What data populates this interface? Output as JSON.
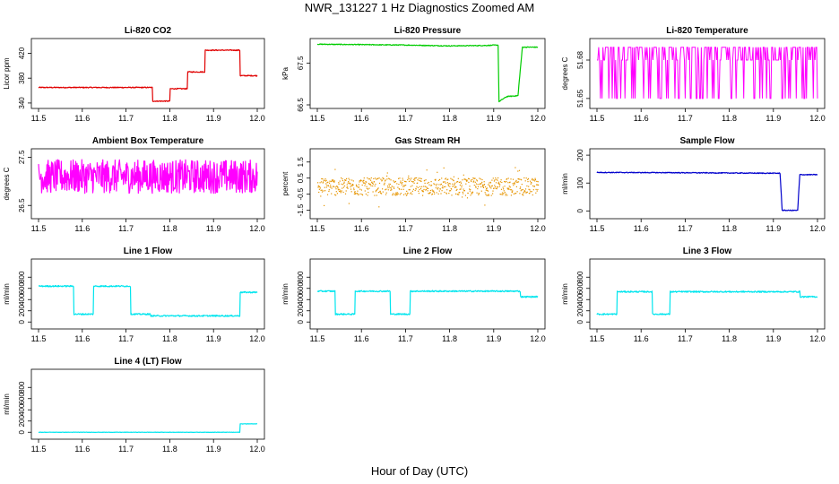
{
  "page": {
    "title": "NWR_131227  1 Hz Diagnostics Zoomed AM",
    "xlabel": "Hour of Day (UTC)"
  },
  "chart_data": [
    {
      "id": "li820-co2",
      "type": "line",
      "title": "Li-820 CO2",
      "ylabel": "Licor ppm",
      "color": "#e00000",
      "xlim": [
        11.5,
        12.0
      ],
      "ylim": [
        337,
        438
      ],
      "xticks": [
        "11.5",
        "11.6",
        "11.7",
        "11.8",
        "11.9",
        "12.0"
      ],
      "yticks": [
        "340",
        "380",
        "420"
      ],
      "series": [
        {
          "x": [
            11.5,
            11.76,
            11.76,
            11.8,
            11.8,
            11.84,
            11.84,
            11.88,
            11.88,
            11.96,
            11.96,
            12.0
          ],
          "y": [
            365,
            365,
            343,
            343,
            363,
            363,
            390,
            390,
            425,
            425,
            384,
            384
          ],
          "noise": 0.8
        }
      ]
    },
    {
      "id": "li820-pressure",
      "type": "line",
      "title": "Li-820 Pressure",
      "ylabel": "kPa",
      "color": "#00cc00",
      "xlim": [
        11.5,
        12.0
      ],
      "ylim": [
        66.5,
        68.0
      ],
      "xticks": [
        "11.5",
        "11.6",
        "11.7",
        "11.8",
        "11.9",
        "12.0"
      ],
      "yticks": [
        "66.5",
        "67.5"
      ],
      "series": [
        {
          "x": [
            11.5,
            11.7,
            11.8,
            11.88,
            11.91,
            11.912,
            11.93,
            11.955,
            11.965,
            12.0
          ],
          "y": [
            67.95,
            67.93,
            67.91,
            67.92,
            67.93,
            66.58,
            66.7,
            66.72,
            67.88,
            67.88
          ],
          "noise": 0.01
        }
      ]
    },
    {
      "id": "li820-temperature",
      "type": "line",
      "title": "Li-820 Temperature",
      "ylabel": "degrees C",
      "color": "#ff00ff",
      "xlim": [
        11.5,
        12.0
      ],
      "ylim": [
        51.645,
        51.694
      ],
      "xticks": [
        "11.5",
        "11.6",
        "11.7",
        "11.8",
        "11.9",
        "12.0"
      ],
      "yticks": [
        "51.65",
        "51.68"
      ],
      "series": [
        {
          "x": [
            11.5,
            12.0
          ],
          "y": [
            51.67,
            51.67
          ],
          "levels": [
            51.65,
            51.68,
            51.69
          ]
        }
      ]
    },
    {
      "id": "ambient-box-temperature",
      "type": "line",
      "title": "Ambient Box Temperature",
      "ylabel": "degrees C",
      "color": "#ff00ff",
      "xlim": [
        11.5,
        12.0
      ],
      "ylim": [
        26.3,
        27.6
      ],
      "xticks": [
        "11.5",
        "11.6",
        "11.7",
        "11.8",
        "11.9",
        "12.0"
      ],
      "yticks": [
        "26.5",
        "27.5"
      ],
      "series": [
        {
          "x": [
            11.5,
            12.0
          ],
          "y": [
            27.1,
            27.1
          ],
          "noise": 0.35
        }
      ]
    },
    {
      "id": "gas-stream-rh",
      "type": "scatter",
      "title": "Gas Stream RH",
      "ylabel": "percent",
      "color": "#e69500",
      "xlim": [
        11.5,
        12.0
      ],
      "ylim": [
        -1.8,
        2.1
      ],
      "xticks": [
        "11.5",
        "11.6",
        "11.7",
        "11.8",
        "11.9",
        "12.0"
      ],
      "yticks": [
        "-1.5",
        "-0.5",
        "0.5",
        "1.5"
      ],
      "series": [
        {
          "x": [
            11.5,
            12.0
          ],
          "y": [
            0.0,
            0.0
          ],
          "noise": 0.55
        }
      ]
    },
    {
      "id": "sample-flow",
      "type": "line",
      "title": "Sample Flow",
      "ylabel": "ml/min",
      "color": "#0000cc",
      "xlim": [
        11.5,
        12.0
      ],
      "ylim": [
        -15,
        210
      ],
      "xticks": [
        "11.5",
        "11.6",
        "11.7",
        "11.8",
        "11.9",
        "12.0"
      ],
      "yticks": [
        "0",
        "100",
        "200"
      ],
      "series": [
        {
          "x": [
            11.5,
            11.7,
            11.8,
            11.915,
            11.92,
            11.955,
            11.96,
            12.0
          ],
          "y": [
            138,
            137,
            136,
            135,
            2,
            2,
            130,
            130
          ],
          "noise": 1.5
        }
      ]
    },
    {
      "id": "line-1-flow",
      "type": "line",
      "title": "Line 1 Flow",
      "ylabel": "ml/min",
      "color": "#00e5ee",
      "xlim": [
        11.5,
        12.0
      ],
      "ylim": [
        -60,
        1060
      ],
      "xticks": [
        "11.5",
        "11.6",
        "11.7",
        "11.8",
        "11.9",
        "12.0"
      ],
      "yticks": [
        "0",
        "200",
        "400",
        "600",
        "800"
      ],
      "series": [
        {
          "x": [
            11.5,
            11.58,
            11.58,
            11.625,
            11.625,
            11.71,
            11.71,
            11.755,
            11.755,
            11.96,
            11.96,
            12.0
          ],
          "y": [
            640,
            640,
            140,
            140,
            640,
            640,
            140,
            140,
            110,
            110,
            530,
            530
          ],
          "noise": 12
        }
      ]
    },
    {
      "id": "line-2-flow",
      "type": "line",
      "title": "Line 2 Flow",
      "ylabel": "ml/min",
      "color": "#00e5ee",
      "xlim": [
        11.5,
        12.0
      ],
      "ylim": [
        -60,
        1060
      ],
      "xticks": [
        "11.5",
        "11.6",
        "11.7",
        "11.8",
        "11.9",
        "12.0"
      ],
      "yticks": [
        "0",
        "200",
        "400",
        "600",
        "800"
      ],
      "series": [
        {
          "x": [
            11.5,
            11.54,
            11.54,
            11.585,
            11.585,
            11.665,
            11.665,
            11.71,
            11.71,
            11.96,
            11.96,
            12.0
          ],
          "y": [
            550,
            550,
            140,
            140,
            550,
            550,
            140,
            140,
            550,
            550,
            450,
            450
          ],
          "noise": 12
        }
      ]
    },
    {
      "id": "line-3-flow",
      "type": "line",
      "title": "Line 3 Flow",
      "ylabel": "ml/min",
      "color": "#00e5ee",
      "xlim": [
        11.5,
        12.0
      ],
      "ylim": [
        -60,
        1060
      ],
      "xticks": [
        "11.5",
        "11.6",
        "11.7",
        "11.8",
        "11.9",
        "12.0"
      ],
      "yticks": [
        "0",
        "200",
        "400",
        "600",
        "800"
      ],
      "series": [
        {
          "x": [
            11.5,
            11.545,
            11.545,
            11.625,
            11.625,
            11.665,
            11.665,
            11.96,
            11.96,
            12.0
          ],
          "y": [
            140,
            140,
            540,
            540,
            140,
            140,
            540,
            540,
            450,
            450
          ],
          "noise": 12
        }
      ]
    },
    {
      "id": "line-4-lt-flow",
      "type": "line",
      "title": "Line 4 (LT) Flow",
      "ylabel": "ml/min",
      "color": "#00e5ee",
      "xlim": [
        11.5,
        12.0
      ],
      "ylim": [
        -60,
        1060
      ],
      "xticks": [
        "11.5",
        "11.6",
        "11.7",
        "11.8",
        "11.9",
        "12.0"
      ],
      "yticks": [
        "0",
        "200",
        "400",
        "600",
        "800"
      ],
      "series": [
        {
          "x": [
            11.5,
            11.96,
            11.96,
            12.0
          ],
          "y": [
            0,
            0,
            150,
            150
          ],
          "noise": 3
        }
      ]
    }
  ]
}
